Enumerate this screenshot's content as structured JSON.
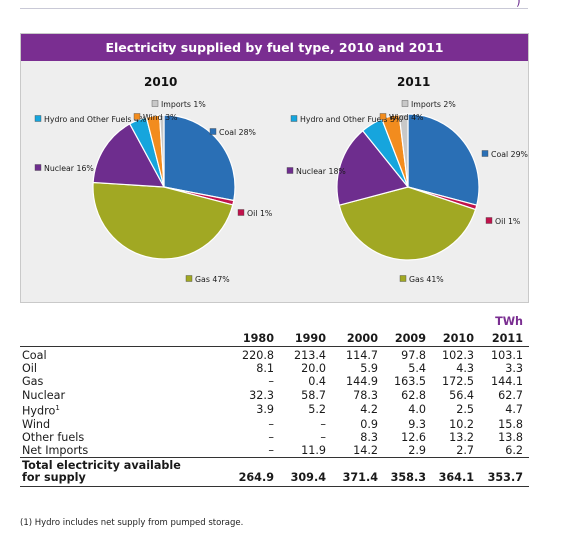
{
  "chart_data": [
    {
      "type": "pie",
      "title": "2010",
      "slices": [
        {
          "name": "Coal",
          "label": "Coal 28%",
          "value": 28,
          "color": "#2a6fb5"
        },
        {
          "name": "Oil",
          "label": "Oil 1%",
          "value": 1,
          "color": "#c0124b"
        },
        {
          "name": "Gas",
          "label": "Gas 47%",
          "value": 47,
          "color": "#a1a823"
        },
        {
          "name": "Nuclear",
          "label": "Nuclear 16%",
          "value": 16,
          "color": "#6e2d8e"
        },
        {
          "name": "Hydro and Other Fuels",
          "label": "Hydro and Other Fuels 4%",
          "value": 4,
          "color": "#16a5dd"
        },
        {
          "name": "Wind",
          "label": "Wind 3%",
          "value": 3,
          "color": "#f28c1e"
        },
        {
          "name": "Imports",
          "label": "Imports 1%",
          "value": 1,
          "color": "#c8c8c8"
        }
      ]
    },
    {
      "type": "pie",
      "title": "2011",
      "slices": [
        {
          "name": "Coal",
          "label": "Coal 29%",
          "value": 29,
          "color": "#2a6fb5"
        },
        {
          "name": "Oil",
          "label": "Oil 1%",
          "value": 1,
          "color": "#c0124b"
        },
        {
          "name": "Gas",
          "label": "Gas 41%",
          "value": 41,
          "color": "#a1a823"
        },
        {
          "name": "Nuclear",
          "label": "Nuclear 18%",
          "value": 18,
          "color": "#6e2d8e"
        },
        {
          "name": "Hydro and Other Fuels",
          "label": "Hydro and Other Fuels 5%",
          "value": 5,
          "color": "#16a5dd"
        },
        {
          "name": "Wind",
          "label": "Wind 4%",
          "value": 4,
          "color": "#f28c1e"
        },
        {
          "name": "Imports",
          "label": "Imports 2%",
          "value": 2,
          "color": "#c8c8c8"
        }
      ]
    },
    {
      "type": "table",
      "unit": "TWh",
      "columns": [
        "1980",
        "1990",
        "2000",
        "2009",
        "2010",
        "2011"
      ],
      "rows": [
        {
          "label": "Coal",
          "values": [
            "220.8",
            "213.4",
            "114.7",
            "97.8",
            "102.3",
            "103.1"
          ]
        },
        {
          "label": "Oil",
          "values": [
            "8.1",
            "20.0",
            "5.9",
            "5.4",
            "4.3",
            "3.3"
          ]
        },
        {
          "label": "Gas",
          "values": [
            "–",
            "0.4",
            "144.9",
            "163.5",
            "172.5",
            "144.1"
          ]
        },
        {
          "label": "Nuclear",
          "values": [
            "32.3",
            "58.7",
            "78.3",
            "62.8",
            "56.4",
            "62.7"
          ]
        },
        {
          "label": "Hydro",
          "label_sup": "1",
          "values": [
            "3.9",
            "5.2",
            "4.2",
            "4.0",
            "2.5",
            "4.7"
          ]
        },
        {
          "label": "Wind",
          "values": [
            "–",
            "–",
            "0.9",
            "9.3",
            "10.2",
            "15.8"
          ]
        },
        {
          "label": "Other fuels",
          "values": [
            "–",
            "–",
            "8.3",
            "12.6",
            "13.2",
            "13.8"
          ]
        },
        {
          "label": "Net Imports",
          "values": [
            "–",
            "11.9",
            "14.2",
            "2.9",
            "2.7",
            "6.2"
          ]
        }
      ],
      "total": {
        "label_line1": "Total electricity available",
        "label_line2": "for supply",
        "values": [
          "264.9",
          "309.4",
          "371.4",
          "358.3",
          "364.1",
          "353.7"
        ]
      }
    }
  ],
  "panel": {
    "title": "Electricity supplied by fuel type, 2010 and 2011"
  },
  "footnote": "(1)  Hydro includes net supply from pumped storage."
}
